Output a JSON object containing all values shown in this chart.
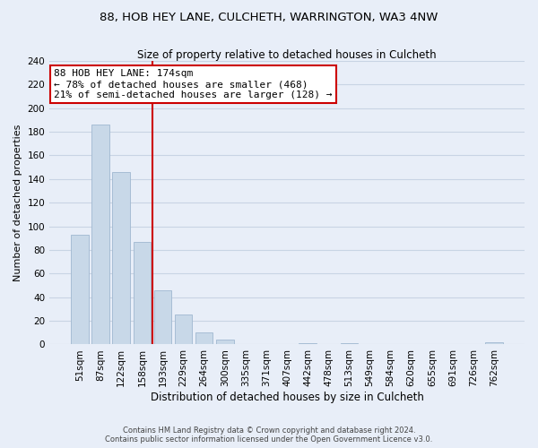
{
  "title": "88, HOB HEY LANE, CULCHETH, WARRINGTON, WA3 4NW",
  "subtitle": "Size of property relative to detached houses in Culcheth",
  "xlabel": "Distribution of detached houses by size in Culcheth",
  "ylabel": "Number of detached properties",
  "bar_labels": [
    "51sqm",
    "87sqm",
    "122sqm",
    "158sqm",
    "193sqm",
    "229sqm",
    "264sqm",
    "300sqm",
    "335sqm",
    "371sqm",
    "407sqm",
    "442sqm",
    "478sqm",
    "513sqm",
    "549sqm",
    "584sqm",
    "620sqm",
    "655sqm",
    "691sqm",
    "726sqm",
    "762sqm"
  ],
  "bar_values": [
    93,
    186,
    146,
    87,
    46,
    25,
    10,
    4,
    0,
    0,
    0,
    1,
    0,
    1,
    0,
    0,
    0,
    0,
    0,
    0,
    2
  ],
  "bar_color": "#c8d8e8",
  "bar_edge_color": "#a0b8d0",
  "vline_x": 3.5,
  "vline_color": "#cc0000",
  "annotation_line1": "88 HOB HEY LANE: 174sqm",
  "annotation_line2": "← 78% of detached houses are smaller (468)",
  "annotation_line3": "21% of semi-detached houses are larger (128) →",
  "annotation_box_color": "#ffffff",
  "annotation_box_edge": "#cc0000",
  "ylim": [
    0,
    240
  ],
  "yticks": [
    0,
    20,
    40,
    60,
    80,
    100,
    120,
    140,
    160,
    180,
    200,
    220,
    240
  ],
  "footer_line1": "Contains HM Land Registry data © Crown copyright and database right 2024.",
  "footer_line2": "Contains public sector information licensed under the Open Government Licence v3.0.",
  "bg_color": "#e8eef8",
  "grid_color": "#c8d4e4",
  "title_fontsize": 9.5,
  "subtitle_fontsize": 8.5,
  "ylabel_fontsize": 8,
  "xlabel_fontsize": 8.5,
  "tick_fontsize": 7.5,
  "ann_fontsize": 8,
  "footer_fontsize": 6
}
